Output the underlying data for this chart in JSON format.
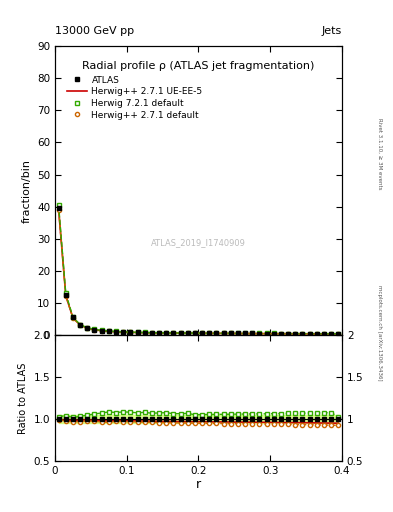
{
  "title_top": "13000 GeV pp",
  "title_right": "Jets",
  "main_title": "Radial profile ρ (ATLAS jet fragmentation)",
  "watermark": "ATLAS_2019_I1740909",
  "ylabel_main": "fraction/bin",
  "ylabel_ratio": "Ratio to ATLAS",
  "xlabel": "r",
  "right_label_top": "Rivet 3.1.10, ≥ 3M events",
  "right_label_bottom": "mcplots.cern.ch [arXiv:1306.3436]",
  "ylim_main": [
    0,
    90
  ],
  "ylim_ratio": [
    0.5,
    2.0
  ],
  "yticks_main": [
    0,
    10,
    20,
    30,
    40,
    50,
    60,
    70,
    80,
    90
  ],
  "yticks_ratio": [
    0.5,
    1.0,
    1.5,
    2.0
  ],
  "xticks": [
    0.0,
    0.1,
    0.2,
    0.3,
    0.4
  ],
  "xlim": [
    0.0,
    0.4
  ],
  "r_values": [
    0.005,
    0.015,
    0.025,
    0.035,
    0.045,
    0.055,
    0.065,
    0.075,
    0.085,
    0.095,
    0.105,
    0.115,
    0.125,
    0.135,
    0.145,
    0.155,
    0.165,
    0.175,
    0.185,
    0.195,
    0.205,
    0.215,
    0.225,
    0.235,
    0.245,
    0.255,
    0.265,
    0.275,
    0.285,
    0.295,
    0.305,
    0.315,
    0.325,
    0.335,
    0.345,
    0.355,
    0.365,
    0.375,
    0.385,
    0.395
  ],
  "atlas_values": [
    39.5,
    12.5,
    5.5,
    3.2,
    2.2,
    1.7,
    1.4,
    1.2,
    1.05,
    0.95,
    0.88,
    0.82,
    0.77,
    0.73,
    0.7,
    0.67,
    0.65,
    0.63,
    0.61,
    0.6,
    0.58,
    0.57,
    0.56,
    0.55,
    0.54,
    0.53,
    0.52,
    0.51,
    0.5,
    0.49,
    0.48,
    0.47,
    0.46,
    0.45,
    0.44,
    0.43,
    0.42,
    0.41,
    0.4,
    0.39
  ],
  "herwig271_default_values": [
    39.0,
    12.2,
    5.3,
    3.1,
    2.15,
    1.65,
    1.35,
    1.15,
    1.02,
    0.92,
    0.85,
    0.79,
    0.74,
    0.7,
    0.67,
    0.64,
    0.62,
    0.6,
    0.58,
    0.57,
    0.55,
    0.54,
    0.53,
    0.52,
    0.51,
    0.5,
    0.49,
    0.48,
    0.47,
    0.46,
    0.45,
    0.44,
    0.43,
    0.42,
    0.41,
    0.4,
    0.39,
    0.38,
    0.37,
    0.36
  ],
  "herwig271_ueee5_values": [
    39.2,
    12.3,
    5.4,
    3.15,
    2.18,
    1.67,
    1.37,
    1.17,
    1.03,
    0.93,
    0.86,
    0.8,
    0.75,
    0.71,
    0.68,
    0.65,
    0.63,
    0.61,
    0.59,
    0.58,
    0.56,
    0.55,
    0.54,
    0.53,
    0.52,
    0.51,
    0.5,
    0.49,
    0.48,
    0.47,
    0.46,
    0.45,
    0.44,
    0.43,
    0.42,
    0.41,
    0.4,
    0.39,
    0.38,
    0.37
  ],
  "herwig721_default_values": [
    40.5,
    13.0,
    5.6,
    3.3,
    2.3,
    1.8,
    1.5,
    1.3,
    1.13,
    1.03,
    0.95,
    0.88,
    0.83,
    0.78,
    0.75,
    0.72,
    0.69,
    0.67,
    0.65,
    0.63,
    0.61,
    0.6,
    0.59,
    0.58,
    0.57,
    0.56,
    0.55,
    0.54,
    0.53,
    0.52,
    0.51,
    0.5,
    0.49,
    0.48,
    0.47,
    0.46,
    0.45,
    0.44,
    0.43,
    0.4
  ],
  "herwig271_default_ratio": [
    0.987,
    0.976,
    0.964,
    0.969,
    0.977,
    0.971,
    0.964,
    0.958,
    0.971,
    0.968,
    0.966,
    0.963,
    0.961,
    0.959,
    0.957,
    0.955,
    0.954,
    0.952,
    0.951,
    0.95,
    0.948,
    0.947,
    0.946,
    0.945,
    0.944,
    0.943,
    0.942,
    0.941,
    0.94,
    0.939,
    0.938,
    0.936,
    0.935,
    0.933,
    0.932,
    0.93,
    0.929,
    0.927,
    0.925,
    0.923
  ],
  "herwig271_ueee5_ratio": [
    0.992,
    0.984,
    0.982,
    0.984,
    0.991,
    0.982,
    0.979,
    0.975,
    0.981,
    0.979,
    0.977,
    0.976,
    0.974,
    0.973,
    0.971,
    0.97,
    0.969,
    0.968,
    0.967,
    0.967,
    0.966,
    0.965,
    0.964,
    0.964,
    0.963,
    0.962,
    0.962,
    0.961,
    0.96,
    0.959,
    0.958,
    0.957,
    0.956,
    0.956,
    0.955,
    0.954,
    0.952,
    0.951,
    0.95,
    0.949
  ],
  "herwig721_default_ratio": [
    1.025,
    1.04,
    1.018,
    1.031,
    1.045,
    1.059,
    1.071,
    1.083,
    1.076,
    1.084,
    1.08,
    1.073,
    1.078,
    1.068,
    1.071,
    1.075,
    1.062,
    1.063,
    1.066,
    1.05,
    1.052,
    1.053,
    1.054,
    1.055,
    1.056,
    1.057,
    1.058,
    1.059,
    1.06,
    1.061,
    1.062,
    1.064,
    1.065,
    1.067,
    1.068,
    1.07,
    1.071,
    1.073,
    1.075,
    1.026
  ],
  "atlas_color": "#000000",
  "herwig271_default_color": "#cc6600",
  "herwig271_ueee5_color": "#cc0000",
  "herwig721_default_color": "#33aa00",
  "band_color": "#ccff66",
  "legend_labels": [
    "ATLAS",
    "Herwig++ 2.7.1 default",
    "Herwig++ 2.7.1 UE-EE-5",
    "Herwig 7.2.1 default"
  ]
}
